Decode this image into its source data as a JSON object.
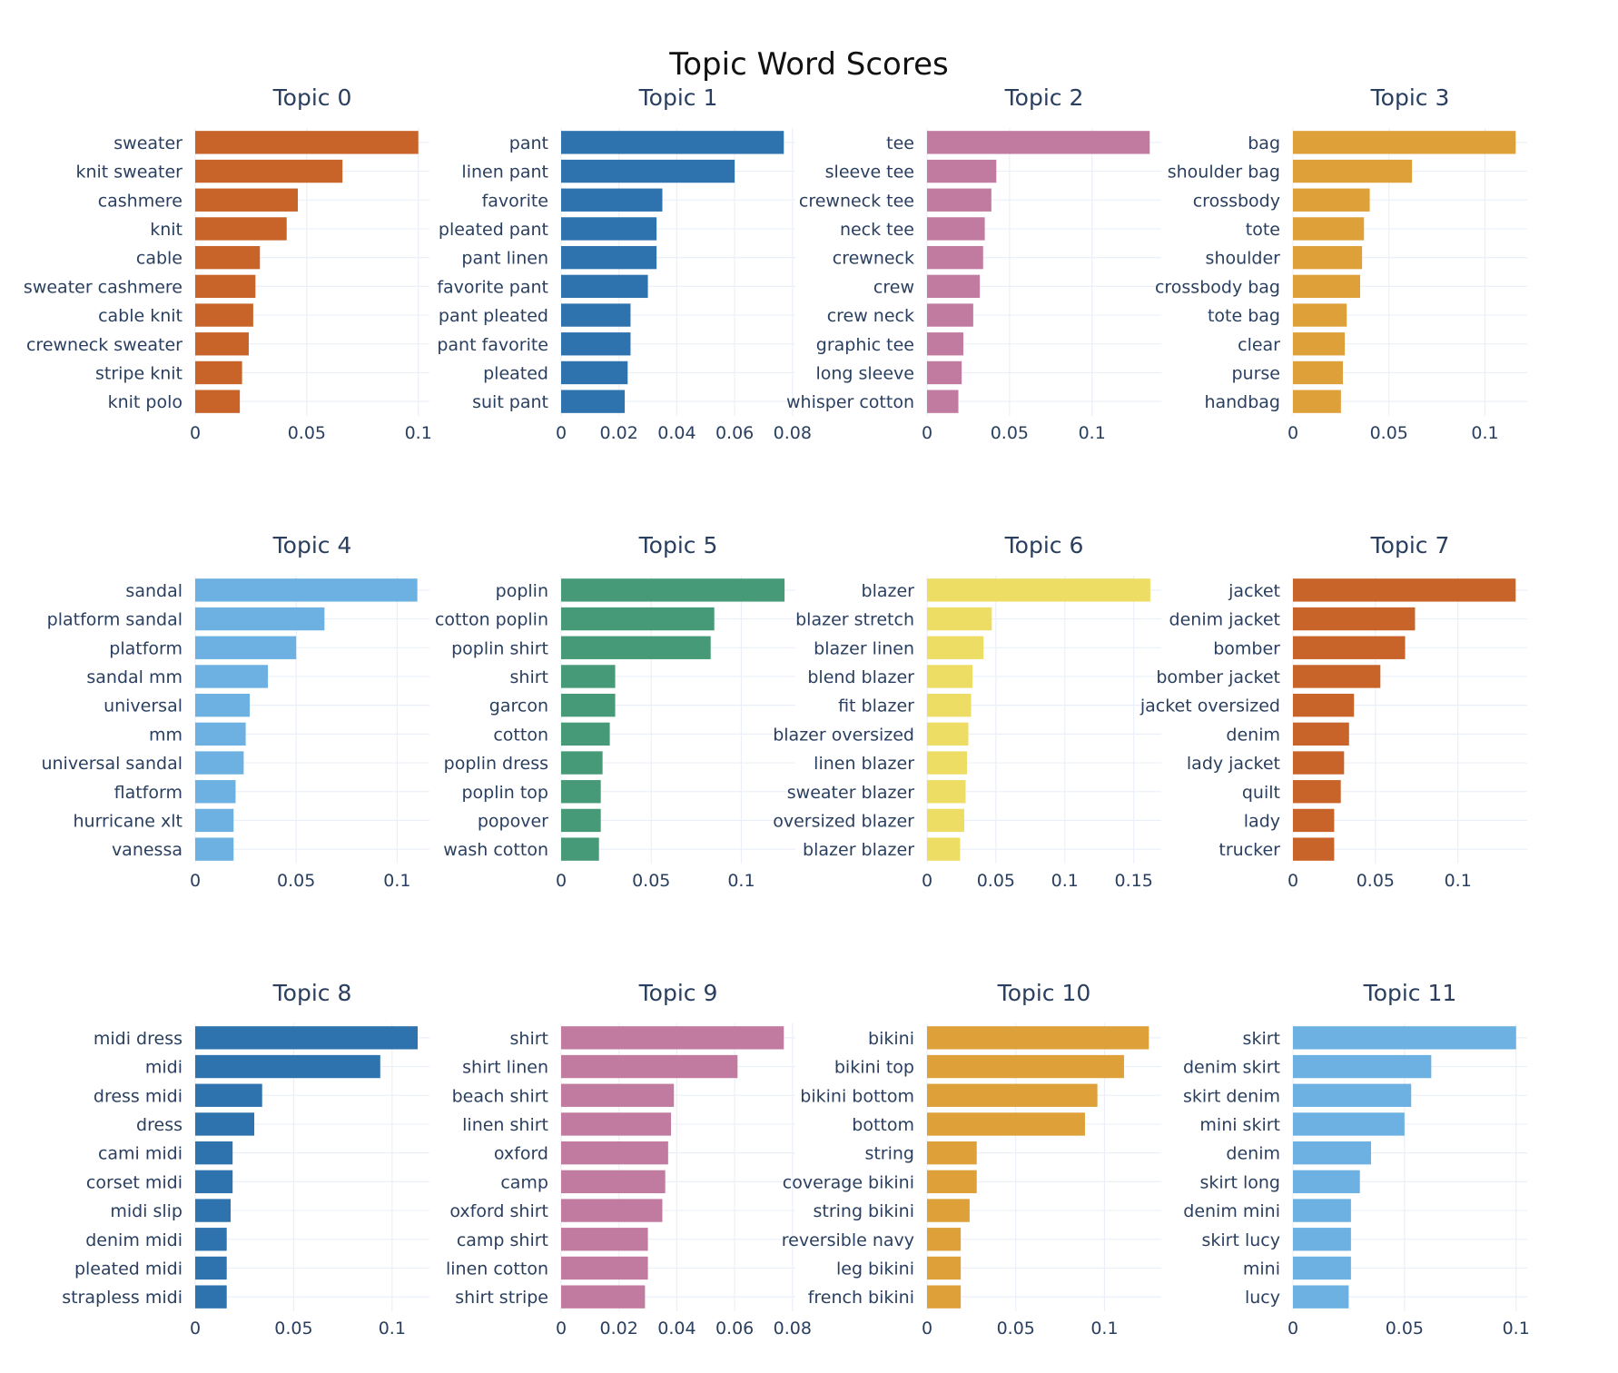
{
  "chart_data": {
    "type": "bar",
    "orientation": "horizontal",
    "title": "Topic Word Scores",
    "subplots": [
      {
        "title": "Topic 0",
        "color": "#c8642a",
        "categories": [
          "sweater",
          "knit sweater",
          "cashmere",
          "knit",
          "cable",
          "sweater cashmere",
          "cable knit",
          "crewneck sweater",
          "stripe knit",
          "knit polo"
        ],
        "values": [
          0.1,
          0.066,
          0.046,
          0.041,
          0.029,
          0.027,
          0.026,
          0.024,
          0.021,
          0.02
        ],
        "xticks": [
          0,
          0.05,
          0.1
        ],
        "xtick_labels": [
          "0",
          "0.05",
          "0.1"
        ],
        "xlim": [
          0,
          0.105
        ]
      },
      {
        "title": "Topic 1",
        "color": "#2e72ae",
        "categories": [
          "pant",
          "linen pant",
          "favorite",
          "pleated pant",
          "pant linen",
          "favorite pant",
          "pant pleated",
          "pant favorite",
          "pleated",
          "suit pant"
        ],
        "values": [
          0.077,
          0.06,
          0.035,
          0.033,
          0.033,
          0.03,
          0.024,
          0.024,
          0.023,
          0.022
        ],
        "xticks": [
          0,
          0.02,
          0.04,
          0.06,
          0.08
        ],
        "xtick_labels": [
          "0",
          "0.02",
          "0.04",
          "0.06",
          "0.08"
        ],
        "xlim": [
          0,
          0.081
        ]
      },
      {
        "title": "Topic 2",
        "color": "#c27ba0",
        "categories": [
          "tee",
          "sleeve tee",
          "crewneck tee",
          "neck tee",
          "crewneck",
          "crew",
          "crew neck",
          "graphic tee",
          "long sleeve",
          "whisper cotton"
        ],
        "values": [
          0.135,
          0.042,
          0.039,
          0.035,
          0.034,
          0.032,
          0.028,
          0.022,
          0.021,
          0.019
        ],
        "xticks": [
          0,
          0.05,
          0.1
        ],
        "xtick_labels": [
          "0",
          "0.05",
          "0.1"
        ],
        "xlim": [
          0,
          0.142
        ]
      },
      {
        "title": "Topic 3",
        "color": "#dea13a",
        "categories": [
          "bag",
          "shoulder bag",
          "crossbody",
          "tote",
          "shoulder",
          "crossbody bag",
          "tote bag",
          "clear",
          "purse",
          "handbag"
        ],
        "values": [
          0.116,
          0.062,
          0.04,
          0.037,
          0.036,
          0.035,
          0.028,
          0.027,
          0.026,
          0.025
        ],
        "xticks": [
          0,
          0.05,
          0.1
        ],
        "xtick_labels": [
          "0",
          "0.05",
          "0.1"
        ],
        "xlim": [
          0,
          0.122
        ]
      },
      {
        "title": "Topic 4",
        "color": "#6cb1e2",
        "categories": [
          "sandal",
          "platform sandal",
          "platform",
          "sandal mm",
          "universal",
          "mm",
          "universal sandal",
          "flatform",
          "hurricane xlt",
          "vanessa"
        ],
        "values": [
          0.11,
          0.064,
          0.05,
          0.036,
          0.027,
          0.025,
          0.024,
          0.02,
          0.019,
          0.019
        ],
        "xticks": [
          0,
          0.05,
          0.1
        ],
        "xtick_labels": [
          "0",
          "0.05",
          "0.1"
        ],
        "xlim": [
          0,
          0.116
        ]
      },
      {
        "title": "Topic 5",
        "color": "#469a77",
        "categories": [
          "poplin",
          "cotton poplin",
          "poplin shirt",
          "shirt",
          "garcon",
          "cotton",
          "poplin dress",
          "poplin top",
          "popover",
          "wash cotton"
        ],
        "values": [
          0.124,
          0.085,
          0.083,
          0.03,
          0.03,
          0.027,
          0.023,
          0.022,
          0.022,
          0.021
        ],
        "xticks": [
          0,
          0.05,
          0.1
        ],
        "xtick_labels": [
          "0",
          "0.05",
          "0.1"
        ],
        "xlim": [
          0,
          0.13
        ]
      },
      {
        "title": "Topic 6",
        "color": "#eedd65",
        "categories": [
          "blazer",
          "blazer stretch",
          "blazer linen",
          "blend blazer",
          "fit blazer",
          "blazer oversized",
          "linen blazer",
          "sweater blazer",
          "oversized blazer",
          "blazer blazer"
        ],
        "values": [
          0.162,
          0.047,
          0.041,
          0.033,
          0.032,
          0.03,
          0.029,
          0.028,
          0.027,
          0.024
        ],
        "xticks": [
          0,
          0.05,
          0.1,
          0.15
        ],
        "xtick_labels": [
          "0",
          "0.05",
          "0.1",
          "0.15"
        ],
        "xlim": [
          0,
          0.17
        ]
      },
      {
        "title": "Topic 7",
        "color": "#c8642a",
        "categories": [
          "jacket",
          "denim jacket",
          "bomber",
          "bomber jacket",
          "jacket oversized",
          "denim",
          "lady jacket",
          "quilt",
          "lady",
          "trucker"
        ],
        "values": [
          0.135,
          0.074,
          0.068,
          0.053,
          0.037,
          0.034,
          0.031,
          0.029,
          0.025,
          0.025
        ],
        "xticks": [
          0,
          0.05,
          0.1
        ],
        "xtick_labels": [
          "0",
          "0.05",
          "0.1"
        ],
        "xlim": [
          0,
          0.142
        ]
      },
      {
        "title": "Topic 8",
        "color": "#2e72ae",
        "categories": [
          "midi dress",
          "midi",
          "dress midi",
          "dress",
          "cami midi",
          "corset midi",
          "midi slip",
          "denim midi",
          "pleated midi",
          "strapless midi"
        ],
        "values": [
          0.113,
          0.094,
          0.034,
          0.03,
          0.019,
          0.019,
          0.018,
          0.016,
          0.016,
          0.016
        ],
        "xticks": [
          0,
          0.05,
          0.1
        ],
        "xtick_labels": [
          "0",
          "0.05",
          "0.1"
        ],
        "xlim": [
          0,
          0.119
        ]
      },
      {
        "title": "Topic 9",
        "color": "#c27ba0",
        "categories": [
          "shirt",
          "shirt linen",
          "beach shirt",
          "linen shirt",
          "oxford",
          "camp",
          "oxford shirt",
          "camp shirt",
          "linen cotton",
          "shirt stripe"
        ],
        "values": [
          0.077,
          0.061,
          0.039,
          0.038,
          0.037,
          0.036,
          0.035,
          0.03,
          0.03,
          0.029
        ],
        "xticks": [
          0,
          0.02,
          0.04,
          0.06,
          0.08
        ],
        "xtick_labels": [
          "0",
          "0.02",
          "0.04",
          "0.06",
          "0.08"
        ],
        "xlim": [
          0,
          0.081
        ]
      },
      {
        "title": "Topic 10",
        "color": "#dea13a",
        "categories": [
          "bikini",
          "bikini top",
          "bikini bottom",
          "bottom",
          "string",
          "coverage bikini",
          "string bikini",
          "reversible navy",
          "leg bikini",
          "french bikini"
        ],
        "values": [
          0.125,
          0.111,
          0.096,
          0.089,
          0.028,
          0.028,
          0.024,
          0.019,
          0.019,
          0.019
        ],
        "xticks": [
          0,
          0.05,
          0.1
        ],
        "xtick_labels": [
          "0",
          "0.05",
          "0.1"
        ],
        "xlim": [
          0,
          0.132
        ]
      },
      {
        "title": "Topic 11",
        "color": "#6cb1e2",
        "categories": [
          "skirt",
          "denim skirt",
          "skirt denim",
          "mini skirt",
          "denim",
          "skirt long",
          "denim mini",
          "skirt lucy",
          "mini",
          "lucy"
        ],
        "values": [
          0.1,
          0.062,
          0.053,
          0.05,
          0.035,
          0.03,
          0.026,
          0.026,
          0.026,
          0.025
        ],
        "xticks": [
          0,
          0.05,
          0.1
        ],
        "xtick_labels": [
          "0",
          "0.05",
          "0.1"
        ],
        "xlim": [
          0,
          0.105
        ]
      }
    ]
  }
}
